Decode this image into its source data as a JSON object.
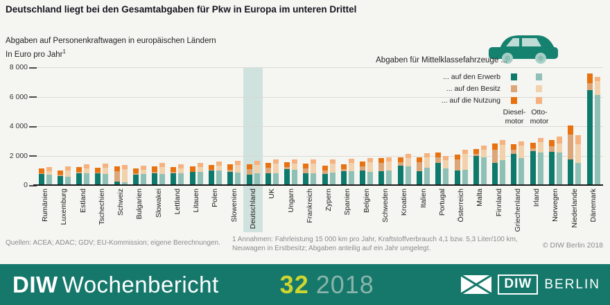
{
  "header": {
    "title": "Deutschland liegt bei den Gesamtabgaben für Pkw in Europa im unteren Drittel"
  },
  "subtitle": {
    "line1": "Abgaben auf Personenkraftwagen in europäischen Ländern",
    "line2": "In Euro pro Jahr",
    "footnote_marker": "1"
  },
  "legend": {
    "heading": "Abgaben für Mittelklassefahrzeuge ...",
    "rows": [
      {
        "label": "... auf den Erwerb"
      },
      {
        "label": "... auf den Besitz"
      },
      {
        "label": "... auf die Nutzung"
      }
    ],
    "col_diesel_line1": "Diesel-",
    "col_diesel_line2": "motor",
    "col_otto_line1": "Otto-",
    "col_otto_line2": "motor",
    "car_icon": "car-side-icon"
  },
  "colors": {
    "diesel": [
      "#0e7a6c",
      "#dca678",
      "#e8720f"
    ],
    "otto": [
      "#8ec0b6",
      "#f2d2ac",
      "#f5b27f"
    ],
    "highlight_band": "#cfe2dd",
    "banner_bg": "#15786b",
    "issue_number": "#cdd62f",
    "issue_year": "#8ab4ab",
    "car_body": "#15816f",
    "car_window": "#bedcd5",
    "car_wheel": "#a8cfc7",
    "car_wheel_inner": "#8abfb2"
  },
  "chart_data": {
    "type": "bar",
    "stacked": true,
    "grid": true,
    "legend_position": "top-right",
    "ylim": [
      0,
      8000
    ],
    "yticks": [
      0,
      2000,
      4000,
      6000,
      8000
    ],
    "ytick_labels": [
      "0",
      "2 000",
      "4 000",
      "6 000",
      "8 000"
    ],
    "segment_names": [
      "Erwerb",
      "Besitz",
      "Nutzung"
    ],
    "highlight_category": "Deutschland",
    "categories": [
      "Rumänien",
      "Luxemburg",
      "Estland",
      "Tschechien",
      "Schweiz",
      "Bulgarien",
      "Slowakei",
      "Lettland",
      "Litauen",
      "Polen",
      "Slowenien",
      "Deutschland",
      "UK",
      "Ungarn",
      "Frankreich",
      "Zypern",
      "Spanien",
      "Belgien",
      "Schweden",
      "Kroatien",
      "Italien",
      "Portugal",
      "Österreich",
      "Malta",
      "Finnland",
      "Griechenland",
      "Irland",
      "Norwegen",
      "Niederlande",
      "Dänemark"
    ],
    "series": [
      {
        "name": "Dieselmotor",
        "segments_order": [
          "Erwerb",
          "Besitz",
          "Nutzung"
        ],
        "values": [
          [
            750,
            30,
            350
          ],
          [
            620,
            90,
            280
          ],
          [
            810,
            110,
            330
          ],
          [
            780,
            50,
            345
          ],
          [
            235,
            700,
            345
          ],
          [
            700,
            80,
            345
          ],
          [
            780,
            110,
            360
          ],
          [
            810,
            95,
            345
          ],
          [
            890,
            20,
            370
          ],
          [
            1000,
            45,
            345
          ],
          [
            890,
            155,
            360
          ],
          [
            720,
            390,
            350
          ],
          [
            780,
            380,
            335
          ],
          [
            1085,
            135,
            350
          ],
          [
            780,
            335,
            335
          ],
          [
            730,
            230,
            335
          ],
          [
            960,
            150,
            335
          ],
          [
            990,
            290,
            350
          ],
          [
            950,
            550,
            340
          ],
          [
            1340,
            235,
            345
          ],
          [
            945,
            600,
            345
          ],
          [
            1525,
            380,
            345
          ],
          [
            990,
            755,
            345
          ],
          [
            1970,
            155,
            345
          ],
          [
            1520,
            885,
            430
          ],
          [
            2130,
            275,
            370
          ],
          [
            2325,
            195,
            370
          ],
          [
            2245,
            370,
            430
          ],
          [
            1760,
            1700,
            590
          ],
          [
            6425,
            480,
            645
          ]
        ]
      },
      {
        "name": "Ottomotor",
        "segments_order": [
          "Erwerb",
          "Besitz",
          "Nutzung"
        ],
        "values": [
          [
            700,
            240,
            280
          ],
          [
            580,
            420,
            280
          ],
          [
            780,
            345,
            280
          ],
          [
            750,
            405,
            280
          ],
          [
            200,
            890,
            285
          ],
          [
            750,
            295,
            280
          ],
          [
            735,
            455,
            280
          ],
          [
            810,
            345,
            280
          ],
          [
            890,
            330,
            280
          ],
          [
            970,
            345,
            280
          ],
          [
            845,
            515,
            280
          ],
          [
            790,
            570,
            290
          ],
          [
            780,
            640,
            280
          ],
          [
            1040,
            410,
            280
          ],
          [
            810,
            640,
            280
          ],
          [
            840,
            610,
            280
          ],
          [
            930,
            550,
            280
          ],
          [
            900,
            650,
            290
          ],
          [
            1005,
            600,
            290
          ],
          [
            1260,
            580,
            285
          ],
          [
            1180,
            690,
            285
          ],
          [
            1150,
            565,
            285
          ],
          [
            1055,
            1070,
            285
          ],
          [
            1890,
            505,
            285
          ],
          [
            1680,
            1045,
            320
          ],
          [
            1840,
            835,
            290
          ],
          [
            2195,
            725,
            290
          ],
          [
            2195,
            610,
            480
          ],
          [
            1520,
            1285,
            595
          ],
          [
            6135,
            930,
            275
          ]
        ]
      }
    ]
  },
  "footer": {
    "sources": "Quellen: ACEA; ADAC; GDV; EU-Kommission; eigene Berechnungen.",
    "footnote_line1": "1 Annahmen: Fahrleistung 15 000 km pro Jahr, Kraftstoffverbrauch 4,1 bzw. 5,3 Liter/100 km,",
    "footnote_line2": "Neuwagen in Erstbesitz; Abgaben anteilig auf ein Jahr umgelegt.",
    "copyright": "© DIW Berlin 2018"
  },
  "banner": {
    "brand_bold": "DIW",
    "brand_rest": "Wochenbericht",
    "issue_number": "32",
    "issue_year": "2018",
    "logo_icon": "diw-envelope-icon",
    "logo_diw": "DIW",
    "logo_berlin": "BERLIN"
  }
}
